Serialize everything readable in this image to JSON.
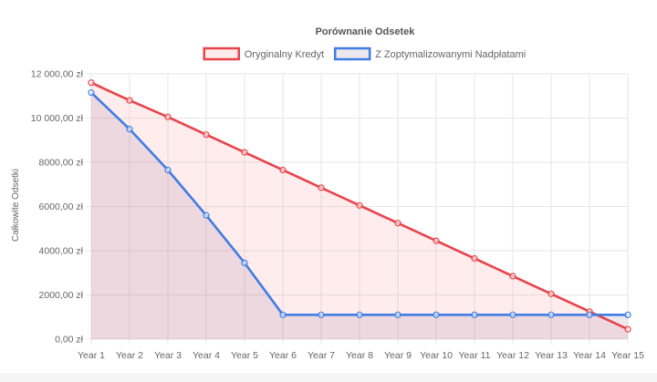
{
  "chart_data": {
    "type": "line",
    "title": "Porównanie Odsetek",
    "xlabel": "",
    "ylabel": "Całkowite Odsetki",
    "categories": [
      "Year 1",
      "Year 2",
      "Year 3",
      "Year 4",
      "Year 5",
      "Year 6",
      "Year 7",
      "Year 8",
      "Year 9",
      "Year 10",
      "Year 11",
      "Year 12",
      "Year 13",
      "Year 14",
      "Year 15"
    ],
    "ylim": [
      0,
      12000
    ],
    "yticks": [
      {
        "value": 0,
        "label": "0,00 zł"
      },
      {
        "value": 2000,
        "label": "2000,00 zł"
      },
      {
        "value": 4000,
        "label": "4000,00 zł"
      },
      {
        "value": 6000,
        "label": "6000,00 zł"
      },
      {
        "value": 8000,
        "label": "8000,00 zł"
      },
      {
        "value": 10000,
        "label": "10 000,00 zł"
      },
      {
        "value": 12000,
        "label": "12 000,00 zł"
      }
    ],
    "grid": true,
    "legend_position": "top",
    "series": [
      {
        "name": "Oryginalny Kredyt",
        "color": "#e8434a",
        "fill": "rgba(255,99,110,0.12)",
        "values": [
          11600,
          10800,
          10050,
          9250,
          8450,
          7650,
          6850,
          6050,
          5250,
          4450,
          3650,
          2850,
          2050,
          1250,
          450
        ]
      },
      {
        "name": "Z Zoptymalizowanymi Nadpłatami",
        "color": "#3f7de3",
        "fill": "rgba(140,110,150,0.16)",
        "values": [
          11150,
          9500,
          7650,
          5600,
          3450,
          1100,
          1100,
          1100,
          1100,
          1100,
          1100,
          1100,
          1100,
          1100,
          1100
        ]
      }
    ]
  }
}
